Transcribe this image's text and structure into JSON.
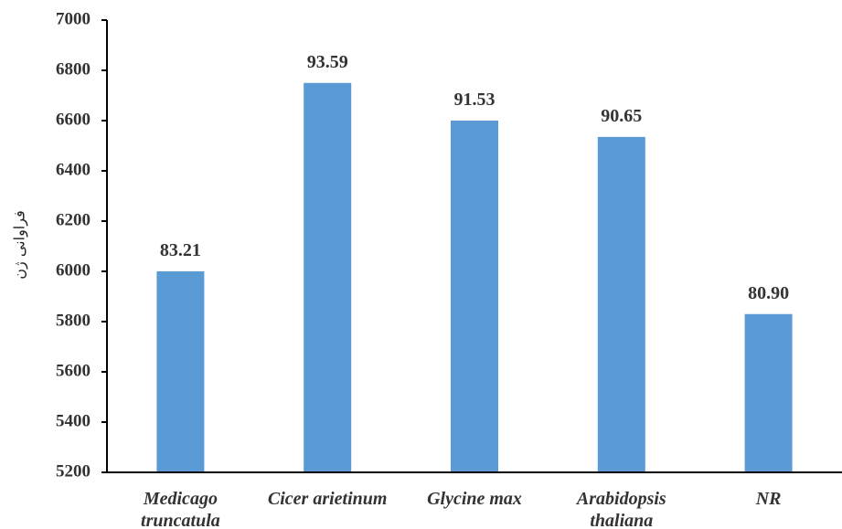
{
  "chart_data": {
    "type": "bar",
    "categories": [
      [
        "Medicago",
        "truncatula"
      ],
      [
        "Cicer arietinum"
      ],
      [
        "Glycine max"
      ],
      [
        "Arabidopsis",
        "thaliana"
      ],
      [
        "NR"
      ]
    ],
    "values": [
      6000,
      6750,
      6600,
      6535,
      5830
    ],
    "data_labels": [
      "83.21",
      "93.59",
      "91.53",
      "90.65",
      "80.90"
    ],
    "ylabel": "فراوانی ژن",
    "xlabel": "",
    "ylim": [
      5200,
      7000
    ],
    "yticks": [
      5200,
      5400,
      5600,
      5800,
      6000,
      6200,
      6400,
      6600,
      6800,
      7000
    ],
    "bar_color": "#5b9bd5",
    "axis_color": "#000000",
    "grid": false,
    "legend": "none"
  }
}
